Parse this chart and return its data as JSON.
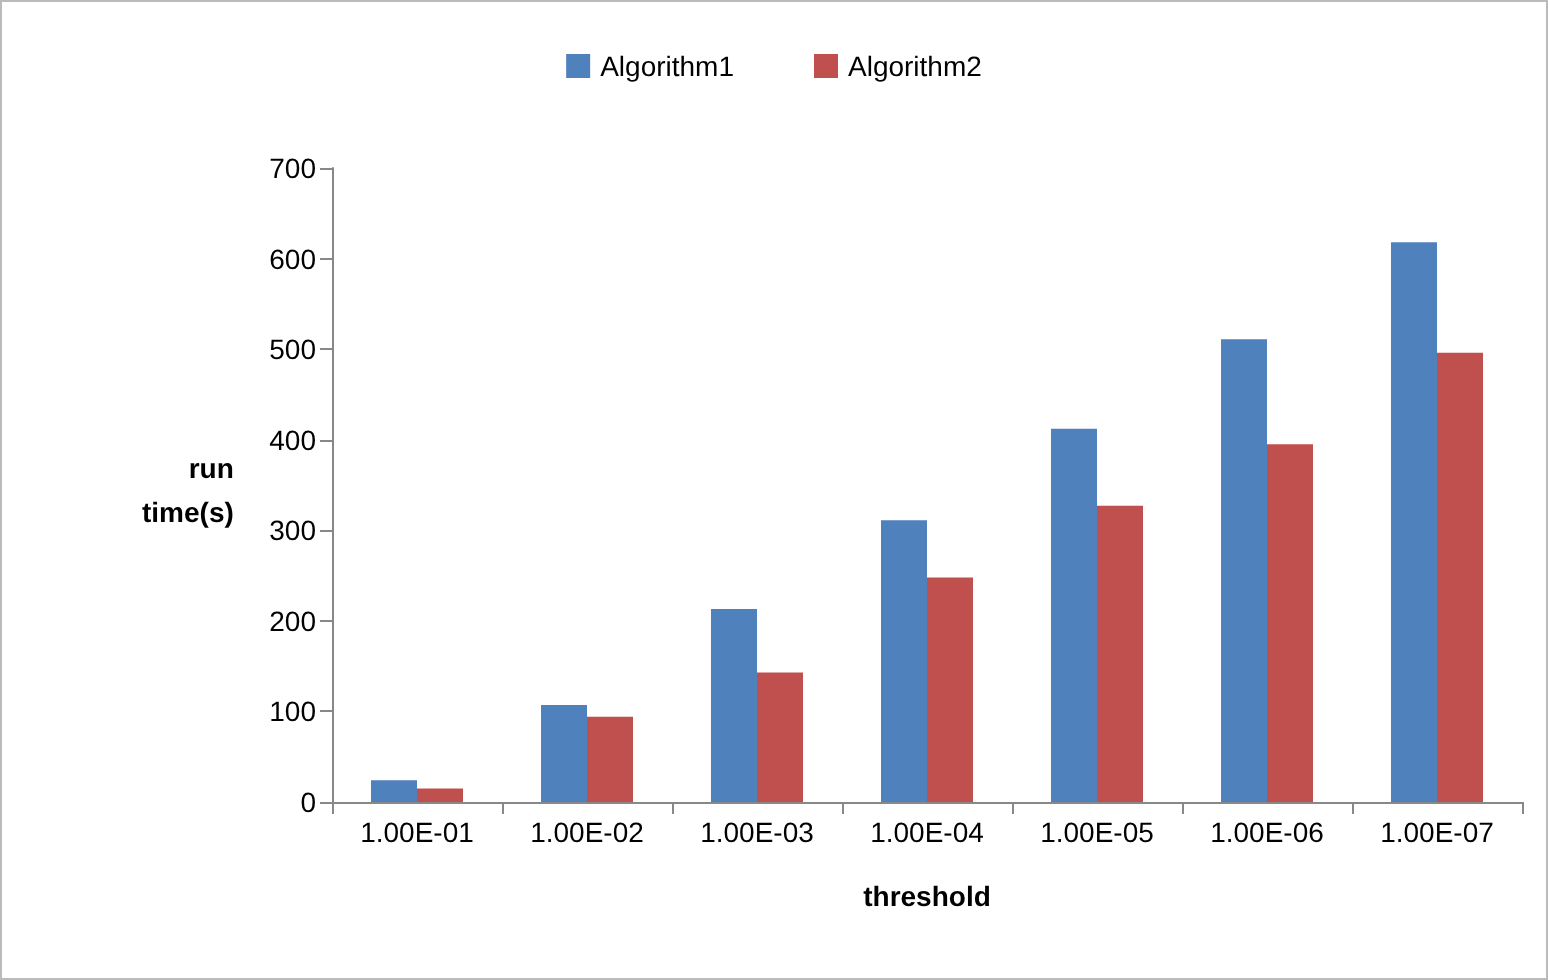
{
  "chart_data": {
    "type": "bar",
    "xlabel": "threshold",
    "ylabel": "run\ntime(s)",
    "categories": [
      "1.00E-01",
      "1.00E-02",
      "1.00E-03",
      "1.00E-04",
      "1.00E-05",
      "1.00E-06",
      "1.00E-07"
    ],
    "series": [
      {
        "name": "Algorithm1",
        "color": "#4f81bd",
        "values": [
          24,
          107,
          213,
          311,
          412,
          511,
          618
        ]
      },
      {
        "name": "Algorithm2",
        "color": "#c0504d",
        "values": [
          15,
          94,
          143,
          248,
          327,
          395,
          496
        ]
      }
    ],
    "ylim": [
      0,
      700
    ],
    "yticks": [
      0,
      100,
      200,
      300,
      400,
      500,
      600,
      700
    ],
    "grid": false,
    "legend": "top"
  }
}
